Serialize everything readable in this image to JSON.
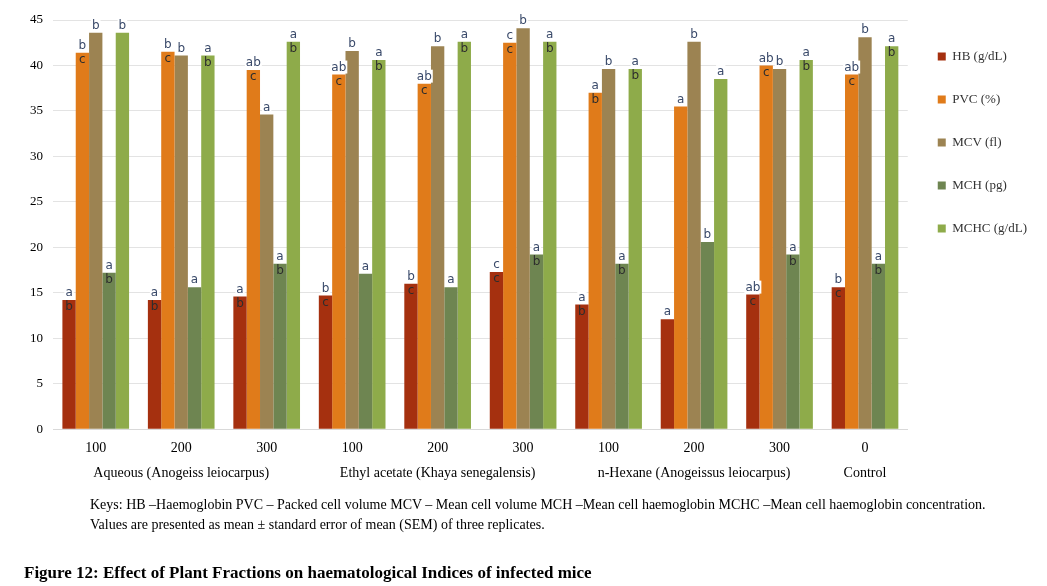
{
  "chart_data": {
    "type": "bar",
    "title": "Figure 12: Effect of Plant Fractions on haematological Indices of infected mice",
    "categories": [
      "100",
      "200",
      "300",
      "100",
      "200",
      "300",
      "100",
      "200",
      "300",
      "0"
    ],
    "series": [
      {
        "name": "HB (g/dL)",
        "color": "#a5300f",
        "values": [
          14.2,
          14.2,
          14.6,
          14.7,
          16.0,
          17.3,
          13.7,
          12.1,
          14.8,
          15.6
        ],
        "value_labels": [
          "a\nb",
          "a\nb",
          "a\nb",
          "b\nc",
          "b\nc",
          "c\nc",
          "a\nb",
          "a",
          "ab\nc",
          "b\nc"
        ]
      },
      {
        "name": "PVC (%)",
        "color": "#e07b1a",
        "values": [
          41.4,
          41.5,
          39.5,
          39.0,
          38.0,
          42.5,
          37.0,
          35.5,
          40.0,
          39.0
        ],
        "value_labels": [
          "b\nc",
          "b\nc",
          "ab\nc",
          "ab\nc",
          "ab\nc",
          "c\nc",
          "a\nb",
          "a",
          "ab\nc",
          "ab\nc"
        ]
      },
      {
        "name": "MCV (fl)",
        "color": "#9c8352",
        "values": [
          43.6,
          41.1,
          34.6,
          41.6,
          42.1,
          44.1,
          39.6,
          42.6,
          39.6,
          43.1
        ],
        "value_labels": [
          "b",
          "b",
          "a",
          "b",
          "b",
          "b",
          "b",
          "b",
          "b",
          "b"
        ]
      },
      {
        "name": "MCH (pg)",
        "color": "#6e8551",
        "values": [
          17.2,
          15.6,
          18.2,
          17.1,
          15.6,
          19.2,
          18.2,
          20.6,
          19.2,
          18.2
        ],
        "value_labels": [
          "a\nb",
          "a",
          "a\nb",
          "a",
          "a",
          "a\nb",
          "a\nb",
          "b",
          "a\nb",
          "a\nb"
        ]
      },
      {
        "name": "MCHC (g/dL)",
        "color": "#8eab4a",
        "values": [
          43.6,
          41.1,
          42.6,
          40.6,
          42.6,
          42.6,
          39.6,
          38.5,
          40.6,
          42.1
        ],
        "value_labels": [
          "b",
          "a\nb",
          "a\nb",
          "a\nb",
          "a\nb",
          "a\nb",
          "a\nb",
          "a",
          "a\nb",
          "a\nb"
        ]
      }
    ],
    "ylim": [
      0,
      45
    ],
    "yticks": [
      0,
      5,
      10,
      15,
      20,
      25,
      30,
      35,
      40,
      45
    ],
    "grid": "y",
    "legend": "right",
    "annotations": [
      "Aqueous (Anogeiss leiocarpus)",
      "Ethyl acetate (Khaya senegalensis)",
      "n-Hexane (Anogeissus leiocarpus)",
      "Control",
      "Keys: HB –Haemoglobin  PVC – Packed cell volume  MCV – Mean cell volume  MCH –Mean cell haemoglobin MCHC –Mean cell haemoglobin concentration.",
      "Values are presented as mean ± standard error of mean (SEM) of three replicates."
    ]
  }
}
